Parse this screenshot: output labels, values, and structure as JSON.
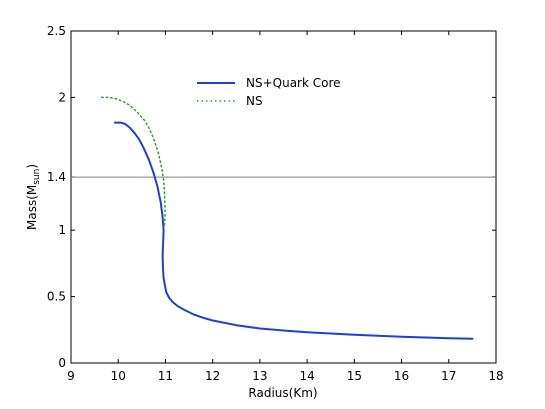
{
  "chart_data": {
    "type": "line",
    "title": "",
    "xlabel": "Radius(Km)",
    "ylabel": "Mass(M",
    "ylabel_sub": "sun",
    "ylabel_close": ")",
    "xlim": [
      9,
      18
    ],
    "ylim": [
      0,
      2.5
    ],
    "xticks": [
      9,
      10,
      11,
      12,
      13,
      14,
      15,
      16,
      17,
      18
    ],
    "yticks": [
      0,
      0.5,
      1,
      1.4,
      2,
      2.5
    ],
    "ytick_labels": [
      "0",
      "0.5",
      "1",
      "1.4",
      "2",
      "2.5"
    ],
    "hline": {
      "y": 1.4,
      "color": "#808080"
    },
    "legend_position": "top-center",
    "grid": false,
    "series": [
      {
        "name": "NS+Quark Core",
        "color": "#1f3fd6",
        "style": "solid",
        "points": [
          [
            9.93,
            1.81
          ],
          [
            10.05,
            1.81
          ],
          [
            10.15,
            1.8
          ],
          [
            10.25,
            1.77
          ],
          [
            10.35,
            1.73
          ],
          [
            10.45,
            1.68
          ],
          [
            10.55,
            1.61
          ],
          [
            10.65,
            1.53
          ],
          [
            10.75,
            1.43
          ],
          [
            10.83,
            1.33
          ],
          [
            10.9,
            1.21
          ],
          [
            10.94,
            1.1
          ],
          [
            10.96,
            1.0
          ],
          [
            10.95,
            0.9
          ],
          [
            10.94,
            0.8
          ],
          [
            10.95,
            0.7
          ],
          [
            10.96,
            0.64
          ],
          [
            10.99,
            0.58
          ],
          [
            11.02,
            0.53
          ],
          [
            11.08,
            0.49
          ],
          [
            11.15,
            0.46
          ],
          [
            11.25,
            0.43
          ],
          [
            11.4,
            0.4
          ],
          [
            11.6,
            0.365
          ],
          [
            11.8,
            0.34
          ],
          [
            12.0,
            0.32
          ],
          [
            12.5,
            0.285
          ],
          [
            13.0,
            0.26
          ],
          [
            13.5,
            0.245
          ],
          [
            14.0,
            0.232
          ],
          [
            14.5,
            0.222
          ],
          [
            15.0,
            0.213
          ],
          [
            15.5,
            0.205
          ],
          [
            16.0,
            0.198
          ],
          [
            16.5,
            0.192
          ],
          [
            17.0,
            0.187
          ],
          [
            17.5,
            0.182
          ]
        ]
      },
      {
        "name": "NS",
        "color": "#2ea02e",
        "style": "dotted",
        "points": [
          [
            9.65,
            2.0
          ],
          [
            9.8,
            2.0
          ],
          [
            9.95,
            1.99
          ],
          [
            10.1,
            1.97
          ],
          [
            10.25,
            1.94
          ],
          [
            10.4,
            1.89
          ],
          [
            10.55,
            1.83
          ],
          [
            10.65,
            1.77
          ],
          [
            10.75,
            1.69
          ],
          [
            10.85,
            1.58
          ],
          [
            10.92,
            1.47
          ],
          [
            10.96,
            1.38
          ],
          [
            10.98,
            1.28
          ],
          [
            10.99,
            1.18
          ],
          [
            10.99,
            1.1
          ],
          [
            10.98,
            1.04
          ]
        ]
      }
    ]
  }
}
